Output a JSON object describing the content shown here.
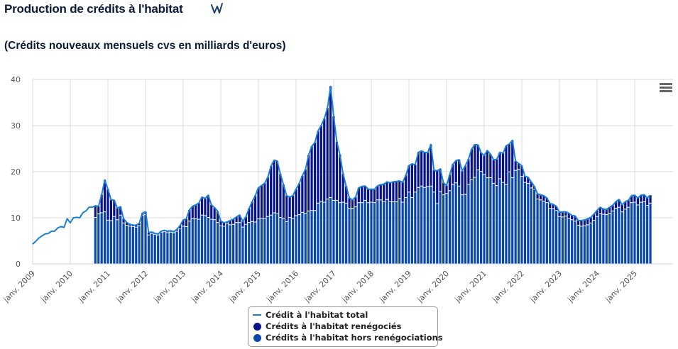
{
  "header": {
    "title": "Production de crédits à l'habitat",
    "title_icon": "wikidata-w-icon",
    "subtitle": "(Crédits nouveaux mensuels cvs en milliards d'euros)"
  },
  "toolbar": {
    "menu_icon": "hamburger-menu-icon"
  },
  "colors": {
    "total_line": "#1a7fd4",
    "renegocies": "#08138a",
    "hors_renegociations": "#0a47ab",
    "grid": "#d8d8d8",
    "axis_text": "#555555"
  },
  "legend": {
    "items": [
      {
        "label": "Crédit à l'habitat total",
        "symbol": "line",
        "color": "#1a7fd4"
      },
      {
        "label": "Crédits à l'habitat renégociés",
        "symbol": "dot",
        "color": "#08138a"
      },
      {
        "label": "Crédits à l'habitat hors renégociations",
        "symbol": "dot",
        "color": "#0a47ab"
      }
    ]
  },
  "chart_data": {
    "type": "bar",
    "title": "Production de crédits à l'habitat",
    "subtitle": "(Crédits nouveaux mensuels cvs en milliards d'euros)",
    "xlabel": "",
    "ylabel": "",
    "ylim": [
      0,
      40
    ],
    "yticks": [
      0,
      10,
      20,
      30,
      40
    ],
    "xticks": [
      "janv. 2009",
      "janv. 2010",
      "janv. 2011",
      "janv. 2012",
      "janv. 2013",
      "janv. 2014",
      "janv. 2015",
      "janv. 2016",
      "janv. 2017",
      "janv. 2018",
      "janv. 2019",
      "janv. 2020",
      "janv. 2021",
      "janv. 2022",
      "janv. 2023",
      "janv. 2024",
      "janv. 2025"
    ],
    "grid": true,
    "legend_position": "bottom-center",
    "start": "2009-01",
    "bars_start": "2010-09",
    "stacked": true,
    "series": [
      {
        "name": "Crédit à l'habitat total",
        "type": "line",
        "values": [
          4.3,
          4.9,
          5.6,
          6.1,
          6.5,
          6.6,
          7.1,
          7.1,
          7.8,
          8.1,
          7.9,
          9.8,
          8.9,
          10.0,
          10.1,
          10.0,
          11.1,
          11.5,
          12.3,
          12.3,
          12.6,
          12.5,
          15.0,
          18.2,
          16.2,
          13.9,
          13.8,
          12.1,
          12.4,
          9.8,
          9.0,
          8.6,
          8.4,
          8.4,
          8.8,
          11.0,
          11.3,
          6.8,
          6.9,
          6.6,
          6.5,
          7.1,
          7.3,
          7.1,
          7.2,
          7.0,
          7.5,
          8.3,
          9.5,
          9.8,
          11.7,
          12.5,
          12.8,
          13.2,
          14.5,
          14.2,
          14.9,
          12.8,
          12.2,
          11.4,
          9.3,
          8.9,
          9.1,
          9.4,
          9.7,
          10.2,
          10.6,
          9.2,
          10.2,
          12.0,
          13.5,
          14.8,
          16.5,
          17.0,
          17.5,
          18.8,
          21.2,
          22.5,
          22.3,
          19.5,
          17.2,
          14.8,
          14.5,
          14.8,
          16.2,
          17.4,
          19.1,
          20.5,
          23.6,
          25.5,
          26.3,
          28.8,
          30.0,
          31.5,
          33.8,
          38.5,
          32.0,
          26.5,
          23.7,
          19.5,
          16.8,
          14.3,
          13.9,
          14.5,
          16.5,
          16.8,
          16.9,
          16.2,
          16.2,
          16.2,
          16.9,
          17.2,
          17.3,
          17.8,
          17.6,
          17.8,
          17.9,
          18.0,
          17.7,
          19.2,
          21.3,
          21.7,
          21.5,
          24.2,
          24.5,
          24.2,
          24.1,
          25.9,
          20.3,
          20.2,
          20.6,
          17.6,
          17.0,
          19.3,
          21.6,
          22.4,
          22.6,
          20.1,
          21.3,
          22.7,
          24.9,
          25.9,
          25.8,
          24.1,
          23.5,
          24.6,
          23.8,
          22.6,
          22.7,
          24.2,
          24.0,
          25.6,
          26.0,
          26.8,
          22.3,
          21.8,
          21.3,
          19.0,
          18.8,
          17.8,
          16.8,
          15.2,
          15.0,
          14.8,
          14.3,
          13.1,
          12.9,
          12.5,
          11.2,
          11.3,
          11.3,
          11.0,
          10.5,
          10.4,
          9.4,
          9.4,
          9.5,
          9.8,
          10.1,
          10.8,
          11.6,
          12.3,
          11.9,
          11.8,
          12.3,
          12.7,
          13.5,
          14.0,
          12.8,
          13.5,
          13.8,
          14.8,
          14.9,
          14.3,
          14.9,
          15.0,
          14.3,
          14.9
        ]
      },
      {
        "name": "Crédits à l'habitat hors renégociations",
        "type": "bar",
        "values": [
          null,
          null,
          null,
          null,
          null,
          null,
          null,
          null,
          null,
          null,
          null,
          null,
          null,
          null,
          null,
          null,
          null,
          null,
          null,
          null,
          10.0,
          10.8,
          11.0,
          11.2,
          9.4,
          9.3,
          10.2,
          9.5,
          10.5,
          8.8,
          8.3,
          8.1,
          8.0,
          7.9,
          8.2,
          10.5,
          10.6,
          6.2,
          6.5,
          6.3,
          6.2,
          6.8,
          6.9,
          6.7,
          6.8,
          6.7,
          7.0,
          7.5,
          8.1,
          8.0,
          9.2,
          9.8,
          9.7,
          9.6,
          10.5,
          10.4,
          10.0,
          9.6,
          9.5,
          8.9,
          8.2,
          8.1,
          8.6,
          8.4,
          8.5,
          8.9,
          8.9,
          7.9,
          8.5,
          8.9,
          9.1,
          9.0,
          9.7,
          9.8,
          9.8,
          10.2,
          10.5,
          11.0,
          10.8,
          10.0,
          9.8,
          9.1,
          10.0,
          9.8,
          10.4,
          10.6,
          11.1,
          10.9,
          11.4,
          11.5,
          11.5,
          13.1,
          13.5,
          13.3,
          14.0,
          14.3,
          13.7,
          13.7,
          13.2,
          13.3,
          13.1,
          12.0,
          12.0,
          12.3,
          13.2,
          13.2,
          13.7,
          13.2,
          13.3,
          13.2,
          13.8,
          13.8,
          13.4,
          13.9,
          13.4,
          13.4,
          13.4,
          14.1,
          13.3,
          14.3,
          15.5,
          14.3,
          15.5,
          16.5,
          16.8,
          16.5,
          16.7,
          16.8,
          15.5,
          13.0,
          15.6,
          14.9,
          15.2,
          15.8,
          17.2,
          17.5,
          16.8,
          14.9,
          15.0,
          17.2,
          18.3,
          18.7,
          20.3,
          20.0,
          19.3,
          18.6,
          18.6,
          17.4,
          16.9,
          18.4,
          17.6,
          17.1,
          19.9,
          18.6,
          20.2,
          20.4,
          18.9,
          17.6,
          17.4,
          16.4,
          16.1,
          14.0,
          13.8,
          13.5,
          13.2,
          12.0,
          11.9,
          11.5,
          10.2,
          10.1,
          10.3,
          9.8,
          9.5,
          9.2,
          8.3,
          8.1,
          8.2,
          8.4,
          8.8,
          9.4,
          10.2,
          10.8,
          10.7,
          10.6,
          10.9,
          11.4,
          12.0,
          12.2,
          11.2,
          11.8,
          12.2,
          13.2,
          13.3,
          12.7,
          13.3,
          13.4,
          12.6,
          13.1
        ]
      },
      {
        "name": "Crédits à l'habitat renégociés",
        "type": "bar",
        "note": "stacked on top of hors renégociations; renégociés = total - hors renégociations"
      }
    ]
  }
}
